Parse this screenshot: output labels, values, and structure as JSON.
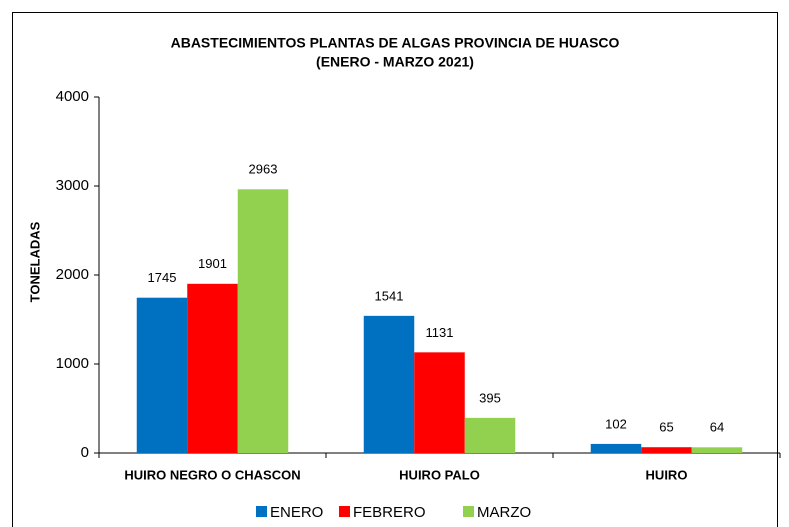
{
  "chart_data": {
    "type": "bar",
    "title": "ABASTECIMIENTOS PLANTAS DE ALGAS PROVINCIA DE HUASCO",
    "subtitle": "(ENERO - MARZO 2021)",
    "y_label": "TONELADAS",
    "categories": [
      "HUIRO NEGRO O CHASCON",
      "HUIRO PALO",
      "HUIRO"
    ],
    "series": [
      {
        "name": "ENERO",
        "color": "#0070c0",
        "values": [
          1745,
          1541,
          102
        ]
      },
      {
        "name": "FEBRERO",
        "color": "#ff0000",
        "values": [
          1901,
          1131,
          65
        ]
      },
      {
        "name": "MARZO",
        "color": "#92d050",
        "values": [
          2963,
          395,
          64
        ]
      }
    ],
    "ylim": [
      0,
      4000
    ],
    "yticks": [
      0,
      1000,
      2000,
      3000,
      4000
    ],
    "grid": false,
    "legend": "bottom"
  }
}
